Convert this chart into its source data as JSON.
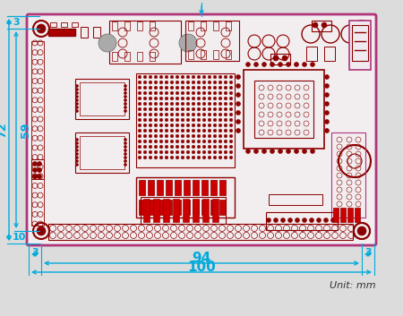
{
  "bg_color": "#dcdcdc",
  "pcb_fill": "#f2eef0",
  "pcb_outline_color": "#b0357a",
  "component_color": "#8b0000",
  "dim_color": "#00aadd",
  "unit_text": "Unit: mm",
  "dim_72": "72",
  "dim_59": "59",
  "dim_10": "10",
  "dim_3_left": "3",
  "dim_3_right": "3",
  "dim_3_top": "3",
  "dim_94": "94",
  "dim_100": "100"
}
